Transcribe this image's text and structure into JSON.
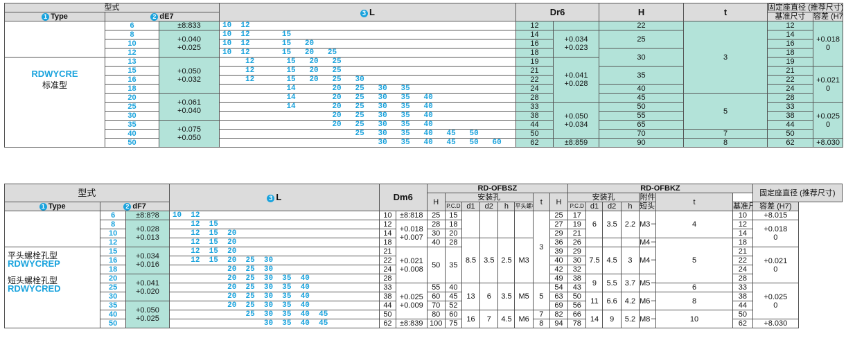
{
  "t1": {
    "h_model": "型式",
    "h_type": "Type",
    "h_type_num": "1",
    "h_d": "dE7",
    "h_d_num": "2",
    "h_L": "L",
    "h_L_num": "3",
    "h_Dr6": "Dr6",
    "h_H": "H",
    "h_t": "t",
    "h_fix": "固定座直径 (推荐尺寸)",
    "h_base": "基准尺寸",
    "h_tol": "容差 (H7)",
    "name": "RDWYCRE",
    "name_cn": "标准型",
    "d": [
      "6",
      "8",
      "10",
      "12",
      "13",
      "15",
      "16",
      "18",
      "20",
      "25",
      "30",
      "35",
      "40",
      "50"
    ],
    "dtol": [
      {
        "v": "+0.040\n+0.025"
      },
      {
        "v": "+0.050\n+0.032"
      },
      {
        "v": "+0.061\n+0.040"
      },
      {
        "v": "+0.075\n+0.050"
      }
    ],
    "dtol_top": "±8:833",
    "L": [
      "10  12",
      "10  12       15",
      "10  12       15   20",
      "10  12       15   20   25",
      "     12       15   20   25",
      "     12       15   20   25",
      "     12       15   20   25   30",
      "              14        20   25   30   35",
      "              14        20   25   30   35   40",
      "              14        20   25   30   35   40",
      "                        20   25   30   35   40",
      "                        20   25   30   35   40",
      "                             25   30   35   40   45   50",
      "                                  30   35   40   45   50   60"
    ],
    "D": [
      "12",
      "14",
      "16",
      "18",
      "19",
      "21",
      "22",
      "24",
      "28",
      "33",
      "38",
      "44",
      "50",
      "62"
    ],
    "Dtol": [
      "+0.034\n+0.023",
      "+0.041\n+0.028",
      "+0.050\n+0.034"
    ],
    "Dtol_last": "±8:859",
    "H": [
      "22",
      "25",
      "30",
      "35",
      "40",
      "45",
      "50",
      "55",
      "65",
      "70",
      "90"
    ],
    "t": [
      "3",
      "5",
      "7",
      "8"
    ],
    "base": [
      "12",
      "14",
      "16",
      "18",
      "19",
      "21",
      "22",
      "24",
      "28",
      "33",
      "38",
      "44",
      "50",
      "62"
    ],
    "btol": [
      "+0.018\n0",
      "+0.021\n0",
      "+0.025\n0"
    ],
    "btol_last": "+8.030"
  },
  "t2": {
    "h_model": "型式",
    "h_type": "Type",
    "h_type_num": "1",
    "h_d": "dF7",
    "h_d_num": "2",
    "h_L": "L",
    "h_L_num": "3",
    "h_Dm6": "Dm6",
    "h_ofbsz": "RD-OFBSZ",
    "h_ofbkz": "RD-OFBKZ",
    "h_H": "H",
    "h_hole": "安装孔",
    "h_pcd": "P.C.D",
    "h_d1": "d1",
    "h_d2": "d2",
    "h_h": "h",
    "h_flat": "平头螺栓",
    "h_t": "t",
    "h_attach": "附件",
    "h_attach_sub": "短头内六角螺栓",
    "h_fix": "固定座直径 (推荐尺寸)",
    "h_base": "基准尺寸",
    "h_tol": "容差 (H7)",
    "name1": "平头螺栓孔型",
    "code1": "RDWYCREP",
    "name2": "短头螺栓孔型",
    "code2": "RDWYCRED",
    "d": [
      "6",
      "8",
      "10",
      "12",
      "15",
      "16",
      "18",
      "20",
      "25",
      "30",
      "35",
      "40",
      "50"
    ],
    "dtol_top": "±8:8?8",
    "dtol": [
      "+0.028\n+0.013",
      "+0.034\n+0.016",
      "+0.041\n+0.020",
      "+0.050\n+0.025"
    ],
    "L": [
      "10  12",
      "    12  15",
      "    12  15  20",
      "    12  15  20",
      "    12  15  20",
      "    12  15  20  25  30",
      "            20  25  30",
      "            20  25  30  35  40",
      "            20  25  30  35  40",
      "            20  25  30  35  40",
      "            20  25  30  35  40",
      "                25  30  35  40  45",
      "                    30  35  40  45"
    ],
    "D": [
      "10",
      "12",
      "14",
      "18",
      "21",
      "22",
      "24",
      "28",
      "33",
      "38",
      "44",
      "50",
      "62"
    ],
    "Dtol_top": "±8:818",
    "Dtol": [
      "+0.018\n+0.007",
      "+0.021\n+0.008",
      "+0.025\n+0.009"
    ],
    "Dtol_last": "±8:839",
    "s_H": [
      "25",
      "28",
      "30",
      "40",
      "50",
      "55",
      "60",
      "70",
      "80",
      "100"
    ],
    "s_pcd": [
      "15",
      "18",
      "20",
      "28",
      "35",
      "40",
      "45",
      "52",
      "60",
      "75"
    ],
    "s_d1": [
      "8.5",
      "13",
      "16"
    ],
    "s_d2": [
      "3.5",
      "6",
      "7"
    ],
    "s_h": [
      "2.5",
      "3.5",
      "4.5"
    ],
    "s_bolt": [
      "M3",
      "M5",
      "M6"
    ],
    "s_t": [
      "3",
      "5",
      "7",
      "8"
    ],
    "k_H": [
      "25",
      "27",
      "29",
      "36",
      "39",
      "40",
      "42",
      "49",
      "54",
      "63",
      "69",
      "82",
      "94"
    ],
    "k_pcd": [
      "17",
      "19",
      "21",
      "26",
      "29",
      "30",
      "32",
      "38",
      "43",
      "50",
      "56",
      "66",
      "78"
    ],
    "k_d1": [
      "6",
      "7.5",
      "9",
      "11",
      "14"
    ],
    "k_d2": [
      "3.5",
      "4.5",
      "5.5",
      "6.6",
      "9"
    ],
    "k_h": [
      "2.2",
      "3",
      "3.7",
      "4.2",
      "5.2"
    ],
    "k_bolt": [
      "M3－10×2个",
      "M4－12×2个",
      "M4－12×4个",
      "M5－16×4个",
      "M6－20×4个",
      "M8－25×4个"
    ],
    "k_t": [
      "4",
      "5",
      "6",
      "8",
      "10"
    ],
    "base": [
      "10",
      "12",
      "14",
      "18",
      "21",
      "22",
      "24",
      "28",
      "33",
      "38",
      "44",
      "50",
      "62"
    ],
    "btol_top": "+8.015",
    "btol": [
      "+0.018\n0",
      "+0.021\n0",
      "+0.025\n0"
    ],
    "btol_last": "+8.030"
  }
}
